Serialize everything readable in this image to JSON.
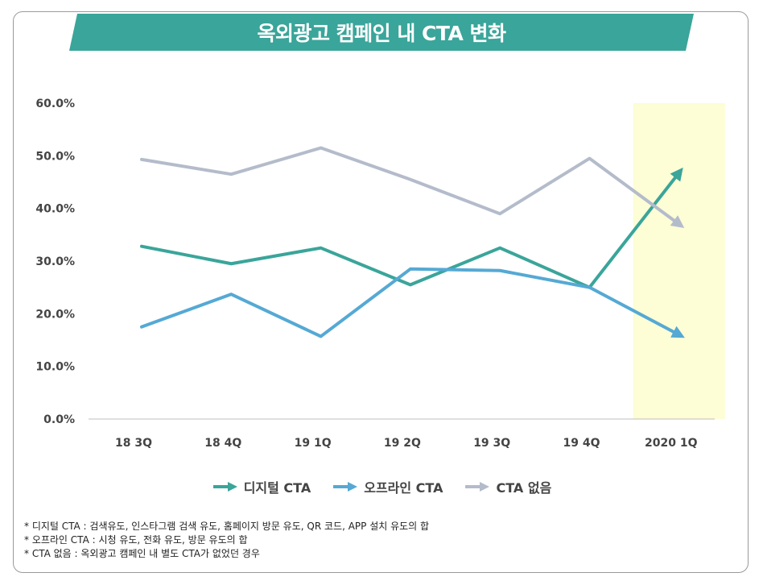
{
  "title": "옥외광고 캠페인 내 CTA 변화",
  "colors": {
    "banner": "#3aa59a",
    "highlight": "#fdfdd6",
    "digital": "#3aa59a",
    "offline": "#55a9d4",
    "none": "#b4bccb",
    "tick_text": "#444444",
    "axis": "#bfbfbf"
  },
  "chart_data": {
    "type": "line",
    "categories": [
      "18 3Q",
      "18 4Q",
      "19 1Q",
      "19 2Q",
      "19 3Q",
      "19 4Q",
      "2020 1Q"
    ],
    "ylim": [
      0,
      60
    ],
    "yticks": [
      "0.0%",
      "10.0%",
      "20.0%",
      "30.0%",
      "40.0%",
      "50.0%",
      "60.0%"
    ],
    "highlight_category": "2020 1Q",
    "grid": false,
    "legend_position": "bottom",
    "series": [
      {
        "name": "디지털 CTA",
        "key": "digital",
        "values": [
          32.8,
          29.5,
          32.5,
          25.5,
          32.5,
          25.0,
          46.8
        ]
      },
      {
        "name": "오프라인 CTA",
        "key": "offline",
        "values": [
          17.5,
          23.7,
          15.7,
          28.5,
          28.2,
          25.0,
          16.0
        ]
      },
      {
        "name": "CTA 없음",
        "key": "none",
        "values": [
          49.3,
          46.5,
          51.5,
          45.5,
          39.0,
          49.5,
          37.0
        ]
      }
    ]
  },
  "notes": [
    "* 디지털 CTA : 검색유도, 인스타그램 검색 유도, 홈페이지 방문 유도, QR 코드, APP 설치 유도의 합",
    "* 오프라인 CTA : 시청 유도, 전화 유도, 방문 유도의 합",
    "* CTA 없음 : 옥외광고 캠페인 내 별도 CTA가 없었던 경우"
  ]
}
